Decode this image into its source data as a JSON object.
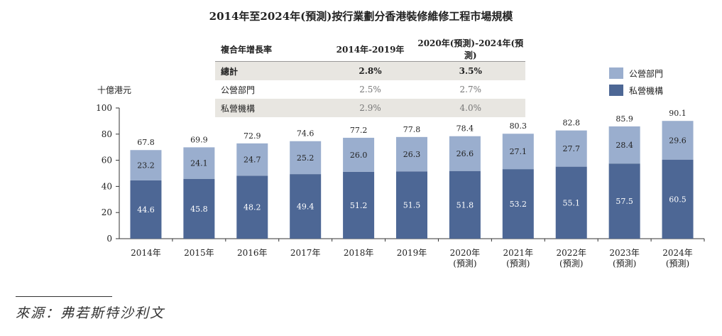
{
  "title": "2014年至2024年(預測)按行業劃分香港裝修維修工程市場規模",
  "cagr_table": {
    "header": [
      "複合年增長率",
      "2014年-2019年",
      "2020年(預測)-2024年(預測)"
    ],
    "rows": [
      {
        "label": "總計",
        "v1": "2.8%",
        "v2": "3.5%"
      },
      {
        "label": "公營部門",
        "v1": "2.5%",
        "v2": "2.7%"
      },
      {
        "label": "私營機構",
        "v1": "2.9%",
        "v2": "4.0%"
      }
    ]
  },
  "source_text": "來源：弗若斯特沙利文",
  "chart_data": {
    "type": "bar",
    "stacked": true,
    "ylabel": "十億港元",
    "ylim": [
      0,
      100
    ],
    "yticks": [
      0,
      20,
      40,
      60,
      80,
      100
    ],
    "categories": [
      [
        "2014年"
      ],
      [
        "2015年"
      ],
      [
        "2016年"
      ],
      [
        "2017年"
      ],
      [
        "2018年"
      ],
      [
        "2019年"
      ],
      [
        "2020年",
        "(預測)"
      ],
      [
        "2021年",
        "(預測)"
      ],
      [
        "2022年",
        "(預測)"
      ],
      [
        "2023年",
        "(預測)"
      ],
      [
        "2024年",
        "(預測)"
      ]
    ],
    "series": [
      {
        "name": "私營機構",
        "color": "#4d6795",
        "values": [
          44.6,
          45.8,
          48.2,
          49.4,
          51.2,
          51.5,
          51.8,
          53.2,
          55.1,
          57.5,
          60.5
        ]
      },
      {
        "name": "公營部門",
        "color": "#9aaece",
        "values": [
          23.2,
          24.1,
          24.7,
          25.2,
          26.0,
          26.3,
          26.6,
          27.1,
          27.7,
          28.4,
          29.6
        ]
      }
    ],
    "totals": [
      67.8,
      69.9,
      72.9,
      74.6,
      77.2,
      77.8,
      78.4,
      80.3,
      82.8,
      85.9,
      90.1
    ],
    "legend": [
      {
        "name": "公營部門",
        "color": "#9aaece"
      },
      {
        "name": "私營機構",
        "color": "#4d6795"
      }
    ],
    "legend_position": "top-right",
    "grid": false
  }
}
